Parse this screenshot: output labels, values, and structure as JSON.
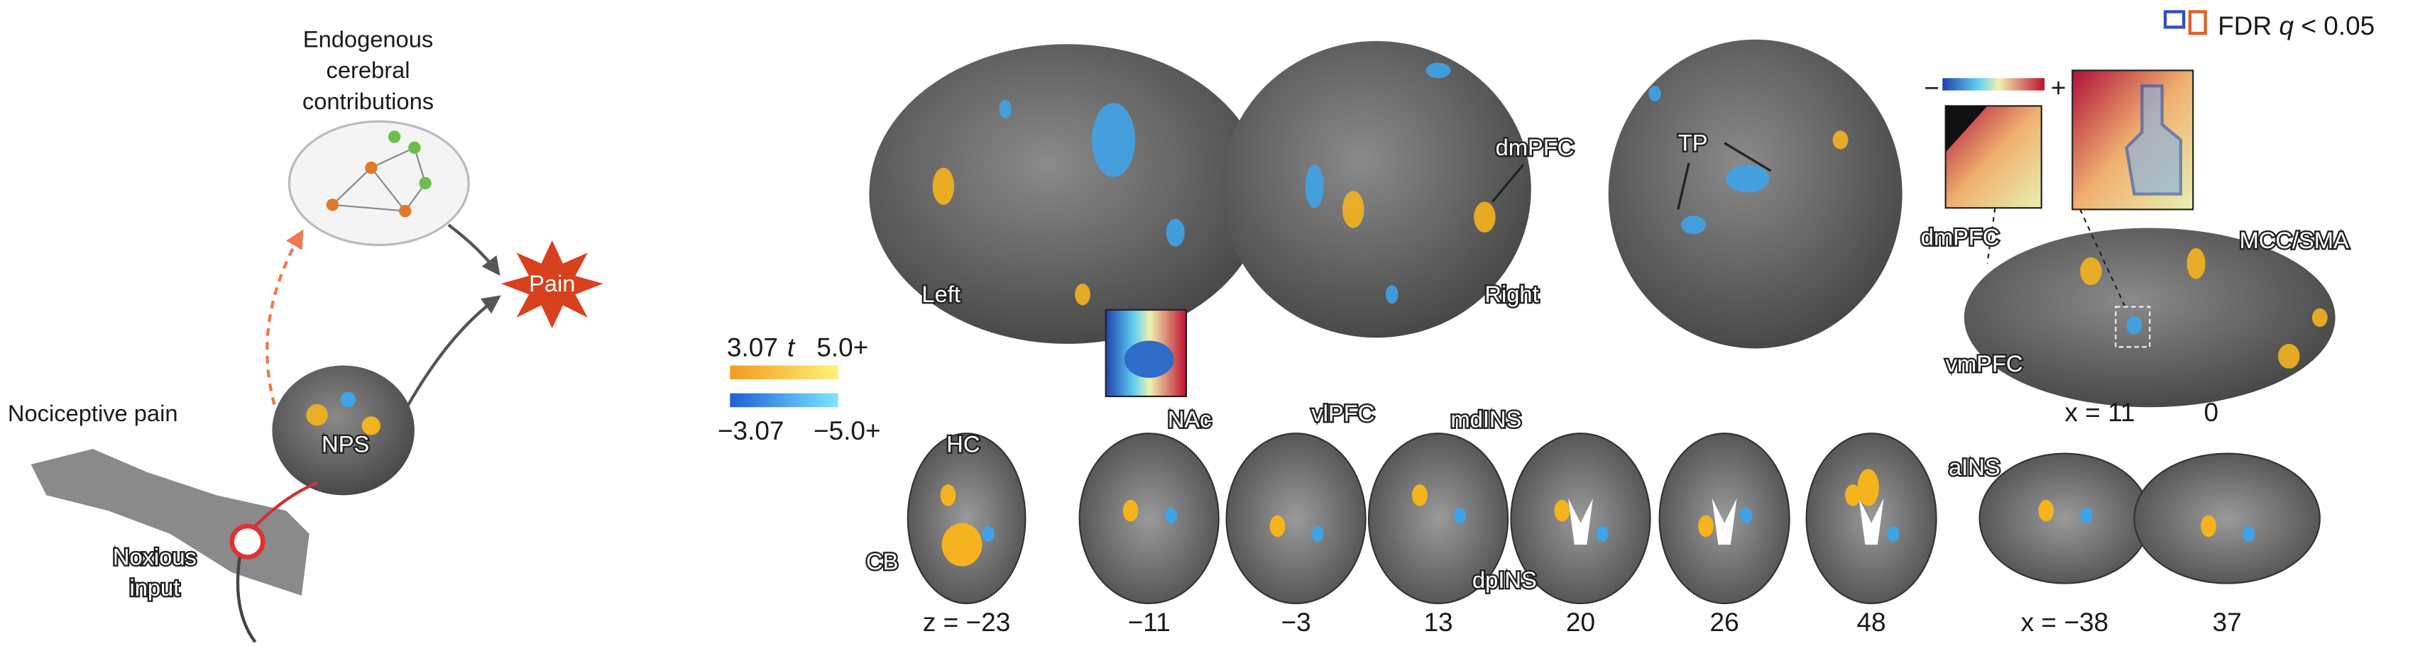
{
  "schematic": {
    "endogenous": [
      "Endogenous",
      "cerebral",
      "contributions"
    ],
    "pain": "Pain",
    "nociceptive": "Nociceptive pain",
    "nps": "NPS",
    "noxious": [
      "Noxious",
      "input"
    ]
  },
  "surface_views": {
    "left": "Left",
    "right": "Right",
    "dmpfc": "dmPFC",
    "tp": "TP"
  },
  "fdr_legend": {
    "fdr": "FDR",
    "q": "q",
    "threshold": "< 0.05"
  },
  "inset_scale": {
    "minus": "−",
    "plus": "+"
  },
  "colorbar": {
    "t": "t",
    "pos_min": "3.07",
    "pos_max": "5.0+",
    "neg_min": "−3.07",
    "neg_max": "−5.0+"
  },
  "sagittal_medial": {
    "dmpfc": "dmPFC",
    "mcc_sma": "MCC/SMA",
    "vmpfc": "vmPFC",
    "x11": "x = 11",
    "x0": "0"
  },
  "slices": {
    "regions": {
      "hc": "HC",
      "nac": "NAc",
      "vlpfc": "vlPFC",
      "mdins": "mdINS",
      "dpins": "dpINS",
      "cb": "CB",
      "ains": "aINS"
    },
    "labels": [
      "z = −23",
      "−11",
      "−3",
      "13",
      "20",
      "26",
      "48",
      "x = −38",
      "37"
    ]
  }
}
